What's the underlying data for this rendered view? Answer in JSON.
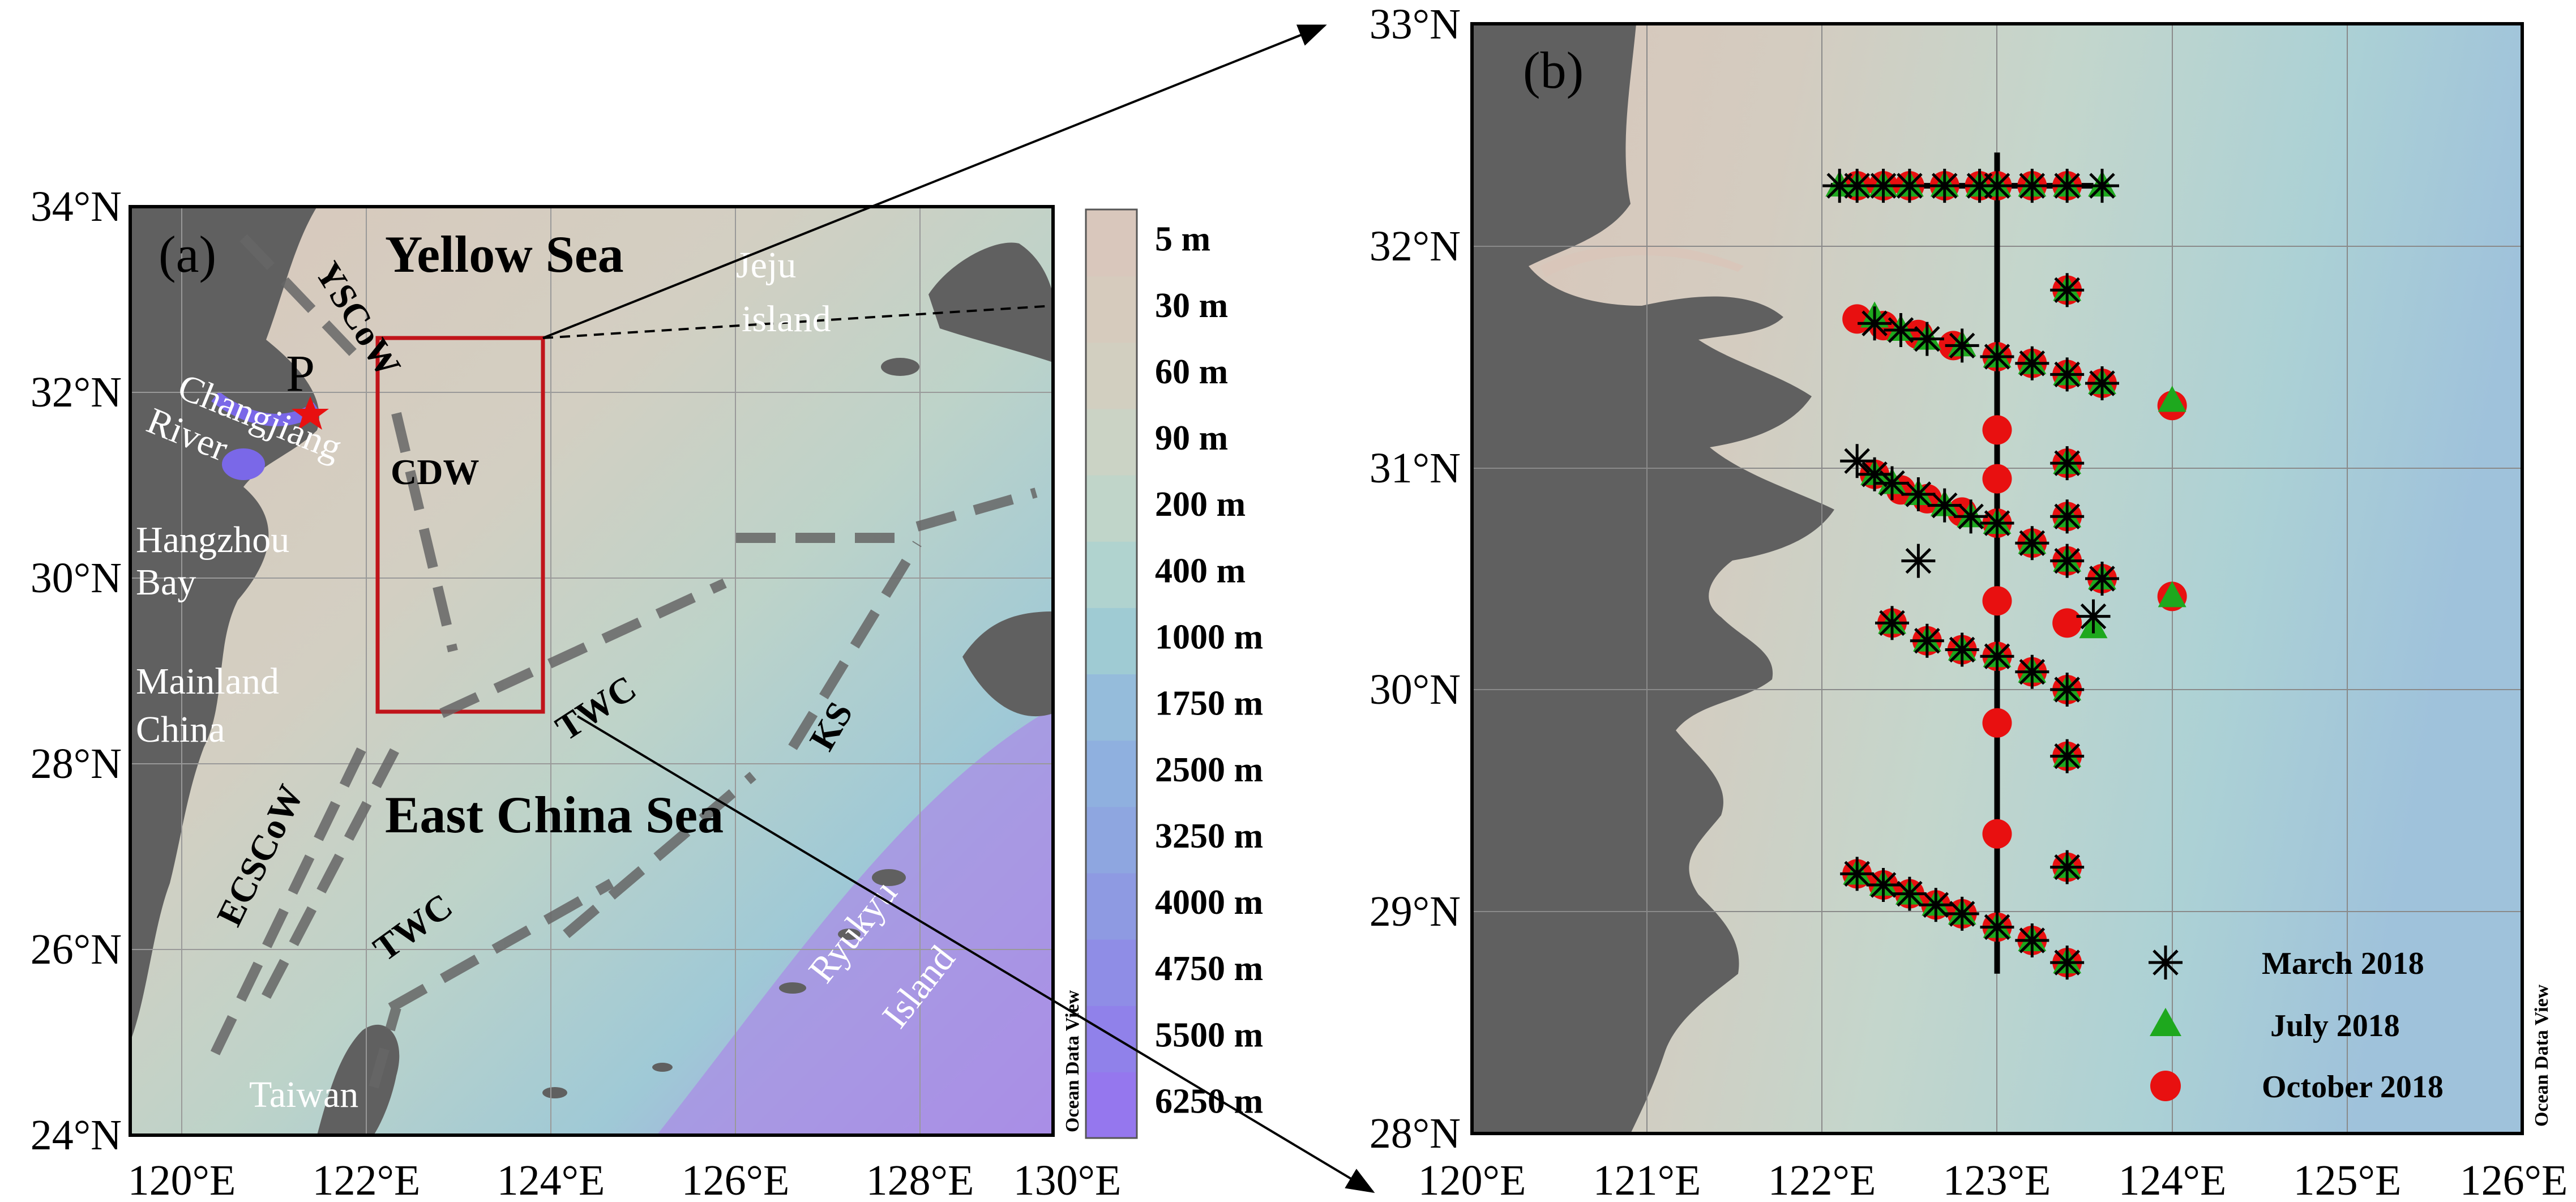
{
  "panel_a": {
    "label": "(a)",
    "lat_labels": [
      "34°N",
      "32°N",
      "30°N",
      "28°N",
      "26°N",
      "24°N"
    ],
    "lon_labels": [
      "120°E",
      "122°E",
      "124°E",
      "126°E",
      "128°E",
      "130°E"
    ],
    "seas": {
      "yellow_sea": "Yellow Sea",
      "east_china_sea": "East China Sea"
    },
    "places": {
      "p": "P",
      "changjiang": "Changjiang",
      "river": "River",
      "hangzhou": "Hangzhou",
      "bay": "Bay",
      "mainland": "Mainland",
      "china": "China",
      "taiwan": "Taiwan",
      "jeju": "Jeju",
      "island": "island",
      "ryukyu": "Ryukyu",
      "ryukyu_island": "Island"
    },
    "currents": {
      "yscow": "YSCoW",
      "cdw": "CDW",
      "twc1": "TWC",
      "twc2": "TWC",
      "ks": "KS",
      "ecscow": "ECSCoW"
    },
    "watermark": "Ocean Data View"
  },
  "colorbar": {
    "labels": [
      "5 m",
      "30 m",
      "60 m",
      "90 m",
      "200 m",
      "400 m",
      "1000 m",
      "1750 m",
      "2500 m",
      "3250 m",
      "4000 m",
      "4750 m",
      "5500 m",
      "6250 m"
    ],
    "colors": [
      "#d9c7bc",
      "#d6cbbd",
      "#d2cfc0",
      "#cbd3c5",
      "#c0d5c9",
      "#b0d3cf",
      "#9fcbd3",
      "#95bcdb",
      "#8fb0df",
      "#8ea6e0",
      "#8e9ae2",
      "#8f8de6",
      "#9081ea",
      "#9577ee"
    ]
  },
  "panel_b": {
    "label": "(b)",
    "lat_labels": [
      "33°N",
      "32°N",
      "31°N",
      "30°N",
      "29°N",
      "28°N"
    ],
    "lon_labels": [
      "120°E",
      "121°E",
      "122°E",
      "123°E",
      "124°E",
      "125°E",
      "126°E"
    ],
    "legend": {
      "march": "March 2018",
      "july": "July 2018",
      "october": "October 2018"
    },
    "watermark": "Ocean Data View"
  },
  "chart_data": {
    "type": "scatter",
    "xlim": [
      120,
      126
    ],
    "ylim": [
      28,
      33
    ],
    "series": [
      {
        "name": "March 2018",
        "marker": "asterisk",
        "color": "#000000",
        "points": [
          [
            122.1,
            32.27
          ],
          [
            122.2,
            32.27
          ],
          [
            122.35,
            32.27
          ],
          [
            122.5,
            32.27
          ],
          [
            122.7,
            32.27
          ],
          [
            122.9,
            32.27
          ],
          [
            123.0,
            32.27
          ],
          [
            123.2,
            32.27
          ],
          [
            123.4,
            32.27
          ],
          [
            123.6,
            32.27
          ],
          [
            123.4,
            31.8
          ],
          [
            122.3,
            31.65
          ],
          [
            122.45,
            31.62
          ],
          [
            122.6,
            31.58
          ],
          [
            122.8,
            31.55
          ],
          [
            123.0,
            31.5
          ],
          [
            123.2,
            31.47
          ],
          [
            123.4,
            31.42
          ],
          [
            123.6,
            31.38
          ],
          [
            122.2,
            31.03
          ],
          [
            122.3,
            30.97
          ],
          [
            122.4,
            30.93
          ],
          [
            122.55,
            30.88
          ],
          [
            122.7,
            30.83
          ],
          [
            122.85,
            30.78
          ],
          [
            123.0,
            30.75
          ],
          [
            123.4,
            31.02
          ],
          [
            123.4,
            30.78
          ],
          [
            123.2,
            30.66
          ],
          [
            123.4,
            30.58
          ],
          [
            123.6,
            30.5
          ],
          [
            122.55,
            30.58
          ],
          [
            123.55,
            30.33
          ],
          [
            122.4,
            30.3
          ],
          [
            122.6,
            30.22
          ],
          [
            122.8,
            30.18
          ],
          [
            123.0,
            30.15
          ],
          [
            123.2,
            30.08
          ],
          [
            123.4,
            30.0
          ],
          [
            123.4,
            29.7
          ],
          [
            123.4,
            29.2
          ],
          [
            122.2,
            29.17
          ],
          [
            122.35,
            29.12
          ],
          [
            122.5,
            29.08
          ],
          [
            122.65,
            29.03
          ],
          [
            122.8,
            28.99
          ],
          [
            123.0,
            28.93
          ],
          [
            123.2,
            28.87
          ],
          [
            123.4,
            28.77
          ]
        ]
      },
      {
        "name": "July 2018",
        "marker": "triangle",
        "color": "#1ea81e",
        "points": [
          [
            122.1,
            32.27
          ],
          [
            122.2,
            32.27
          ],
          [
            122.35,
            32.27
          ],
          [
            122.5,
            32.27
          ],
          [
            122.7,
            32.27
          ],
          [
            122.9,
            32.27
          ],
          [
            123.0,
            32.27
          ],
          [
            123.2,
            32.27
          ],
          [
            123.4,
            32.27
          ],
          [
            123.6,
            32.27
          ],
          [
            123.4,
            31.8
          ],
          [
            122.3,
            31.68
          ],
          [
            122.45,
            31.62
          ],
          [
            122.6,
            31.58
          ],
          [
            122.8,
            31.55
          ],
          [
            123.0,
            31.5
          ],
          [
            123.2,
            31.47
          ],
          [
            123.4,
            31.42
          ],
          [
            123.6,
            31.38
          ],
          [
            124.0,
            31.3
          ],
          [
            122.3,
            30.97
          ],
          [
            122.4,
            30.93
          ],
          [
            122.55,
            30.88
          ],
          [
            122.7,
            30.83
          ],
          [
            122.85,
            30.78
          ],
          [
            123.0,
            30.75
          ],
          [
            123.4,
            31.02
          ],
          [
            123.4,
            30.78
          ],
          [
            123.2,
            30.66
          ],
          [
            123.4,
            30.58
          ],
          [
            123.6,
            30.5
          ],
          [
            124.0,
            30.42
          ],
          [
            123.55,
            30.28
          ],
          [
            122.4,
            30.3
          ],
          [
            122.6,
            30.22
          ],
          [
            122.8,
            30.18
          ],
          [
            123.0,
            30.15
          ],
          [
            123.2,
            30.08
          ],
          [
            123.4,
            30.0
          ],
          [
            123.4,
            29.7
          ],
          [
            123.4,
            29.2
          ],
          [
            122.2,
            29.17
          ],
          [
            122.35,
            29.12
          ],
          [
            122.5,
            29.08
          ],
          [
            122.65,
            29.03
          ],
          [
            122.8,
            28.99
          ],
          [
            123.0,
            28.93
          ],
          [
            123.2,
            28.87
          ],
          [
            123.4,
            28.77
          ]
        ]
      },
      {
        "name": "October 2018",
        "marker": "circle",
        "color": "#e81010",
        "points": [
          [
            122.2,
            32.27
          ],
          [
            122.35,
            32.27
          ],
          [
            122.5,
            32.27
          ],
          [
            122.7,
            32.27
          ],
          [
            122.9,
            32.27
          ],
          [
            123.0,
            32.27
          ],
          [
            123.2,
            32.27
          ],
          [
            123.4,
            32.27
          ],
          [
            123.4,
            31.8
          ],
          [
            122.2,
            31.67
          ],
          [
            122.35,
            31.64
          ],
          [
            122.55,
            31.6
          ],
          [
            122.75,
            31.55
          ],
          [
            123.0,
            31.5
          ],
          [
            123.2,
            31.47
          ],
          [
            123.4,
            31.42
          ],
          [
            123.6,
            31.38
          ],
          [
            124.0,
            31.28
          ],
          [
            123.0,
            31.17
          ],
          [
            123.0,
            30.95
          ],
          [
            122.3,
            30.97
          ],
          [
            122.45,
            30.9
          ],
          [
            122.6,
            30.86
          ],
          [
            122.8,
            30.8
          ],
          [
            123.0,
            30.75
          ],
          [
            123.4,
            31.02
          ],
          [
            123.4,
            30.78
          ],
          [
            123.2,
            30.66
          ],
          [
            123.4,
            30.58
          ],
          [
            123.6,
            30.5
          ],
          [
            124.0,
            30.42
          ],
          [
            123.0,
            30.4
          ],
          [
            123.4,
            30.3
          ],
          [
            122.4,
            30.3
          ],
          [
            122.6,
            30.22
          ],
          [
            122.8,
            30.18
          ],
          [
            123.0,
            30.15
          ],
          [
            123.2,
            30.08
          ],
          [
            123.4,
            30.0
          ],
          [
            123.0,
            29.85
          ],
          [
            123.4,
            29.7
          ],
          [
            123.0,
            29.35
          ],
          [
            123.4,
            29.2
          ],
          [
            122.2,
            29.17
          ],
          [
            122.35,
            29.12
          ],
          [
            122.5,
            29.08
          ],
          [
            122.65,
            29.03
          ],
          [
            122.8,
            28.99
          ],
          [
            123.0,
            28.93
          ],
          [
            123.2,
            28.87
          ],
          [
            123.4,
            28.77
          ]
        ]
      }
    ],
    "transects": [
      {
        "from": [
          122.05,
          32.27
        ],
        "to": [
          123.55,
          32.27
        ]
      },
      {
        "from": [
          123.0,
          32.42
        ],
        "to": [
          123.0,
          28.72
        ]
      }
    ]
  }
}
